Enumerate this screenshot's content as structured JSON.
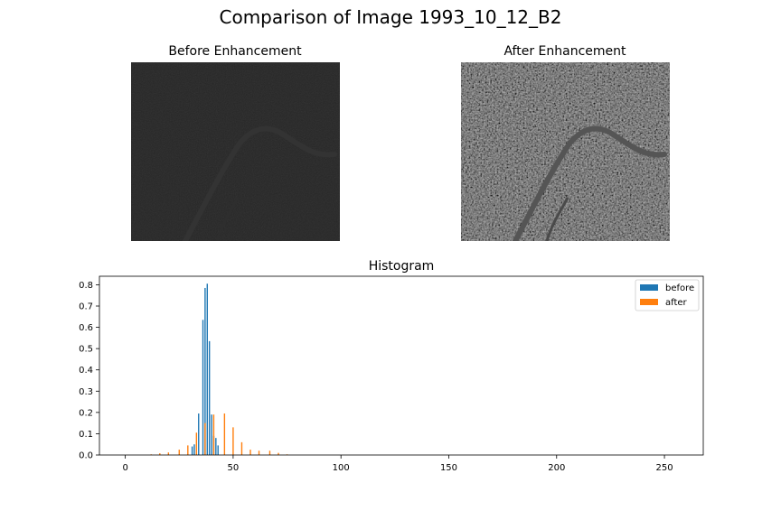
{
  "figure": {
    "title": "Comparison of Image 1993_10_12_B2"
  },
  "panels": {
    "before_title": "Before Enhancement",
    "after_title": "After Enhancement"
  },
  "colors": {
    "before": "#1f77b4",
    "after": "#ff7f0e",
    "before_image_base": "#262626",
    "after_image_base": "#2c2c2c"
  },
  "chart_data": {
    "type": "bar",
    "title": "Histogram",
    "xlabel": "",
    "ylabel": "",
    "xlim": [
      -12,
      268
    ],
    "ylim": [
      0,
      0.84
    ],
    "xticks": [
      0,
      50,
      100,
      150,
      200,
      250
    ],
    "yticks": [
      0.0,
      0.1,
      0.2,
      0.3,
      0.4,
      0.5,
      0.6,
      0.7,
      0.8
    ],
    "ytick_labels": [
      "0.0",
      "0.1",
      "0.2",
      "0.3",
      "0.4",
      "0.5",
      "0.6",
      "0.7",
      "0.8"
    ],
    "legend_position": "upper right",
    "grid": false,
    "series": [
      {
        "name": "before",
        "color": "#1f77b4",
        "x": [
          31,
          32,
          34,
          36,
          37,
          38,
          39,
          40,
          41,
          42,
          43
        ],
        "values": [
          0.04,
          0.05,
          0.195,
          0.635,
          0.785,
          0.805,
          0.535,
          0.19,
          0.09,
          0.08,
          0.045
        ]
      },
      {
        "name": "after",
        "color": "#ff7f0e",
        "x": [
          12,
          16,
          20,
          25,
          29,
          33,
          37,
          41,
          46,
          50,
          54,
          58,
          62,
          67,
          71,
          75
        ],
        "values": [
          0.003,
          0.008,
          0.012,
          0.025,
          0.045,
          0.105,
          0.15,
          0.19,
          0.195,
          0.13,
          0.06,
          0.025,
          0.02,
          0.02,
          0.01,
          0.003
        ]
      }
    ]
  }
}
